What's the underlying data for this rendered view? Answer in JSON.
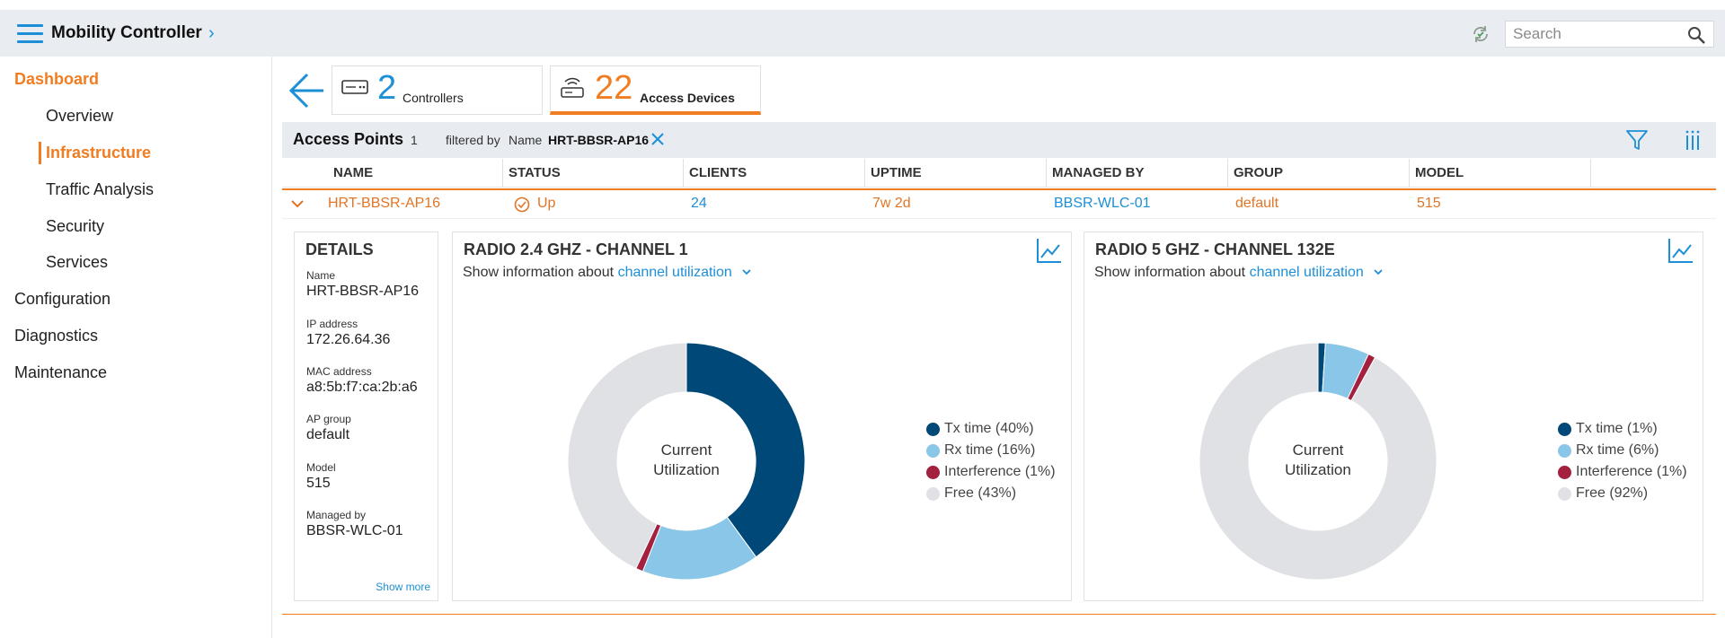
{
  "header": {
    "title": "Mobility Controller",
    "search_placeholder": "Search",
    "icons": [
      "hamburger-icon",
      "chevron-right-icon",
      "refresh-icon",
      "search-icon"
    ]
  },
  "sidebar": {
    "items": [
      {
        "label": "Dashboard",
        "active": true
      },
      {
        "label": "Overview"
      },
      {
        "label": "Infrastructure",
        "active": true
      },
      {
        "label": "Traffic Analysis"
      },
      {
        "label": "Security"
      },
      {
        "label": "Services"
      },
      {
        "label": "Configuration"
      },
      {
        "label": "Diagnostics"
      },
      {
        "label": "Maintenance"
      }
    ]
  },
  "tiles": {
    "controllers": {
      "count": "2",
      "label": "Controllers"
    },
    "access_devices": {
      "count": "22",
      "label": "Access Devices"
    }
  },
  "table": {
    "title": "Access Points",
    "count": "1",
    "filtered_by": "filtered by",
    "filter_name": "Name",
    "filter_value": "HRT-BBSR-AP16",
    "columns": [
      "NAME",
      "STATUS",
      "CLIENTS",
      "UPTIME",
      "MANAGED BY",
      "GROUP",
      "MODEL"
    ],
    "rows": [
      {
        "name": "HRT-BBSR-AP16",
        "status": "Up",
        "clients": "24",
        "uptime": "7w 2d",
        "managed_by": "BBSR-WLC-01",
        "group": "default",
        "model": "515"
      }
    ]
  },
  "details": {
    "title": "DETAILS",
    "fields": [
      {
        "label": "Name",
        "value": "HRT-BBSR-AP16"
      },
      {
        "label": "IP address",
        "value": "172.26.64.36"
      },
      {
        "label": "MAC address",
        "value": "a8:5b:f7:ca:2b:a6"
      },
      {
        "label": "AP group",
        "value": "default"
      },
      {
        "label": "Model",
        "value": "515"
      },
      {
        "label": "Managed by",
        "value": "BBSR-WLC-01"
      }
    ],
    "show_more": "Show more"
  },
  "radios": [
    {
      "title": "RADIO 2.4 GHZ - CHANNEL 1",
      "info_prefix": "Show information about",
      "info_link": "channel utilization",
      "center_line1": "Current",
      "center_line2": "Utilization",
      "legend": [
        "Tx time (40%)",
        "Rx time (16%)",
        "Interference (1%)",
        "Free (43%)"
      ],
      "values": [
        40,
        16,
        1,
        43
      ]
    },
    {
      "title": "RADIO 5 GHZ - CHANNEL 132E",
      "info_prefix": "Show information about",
      "info_link": "channel utilization",
      "center_line1": "Current",
      "center_line2": "Utilization",
      "legend": [
        "Tx time (1%)",
        "Rx time (6%)",
        "Interference (1%)",
        "Free (92%)"
      ],
      "values": [
        1,
        6,
        1,
        92
      ]
    }
  ],
  "colors": {
    "accent": "#f07d22",
    "link": "#1d8fd6",
    "tx": "#004877",
    "rx": "#8ac6e8",
    "interference": "#a3203f",
    "free": "#e0e1e4"
  }
}
